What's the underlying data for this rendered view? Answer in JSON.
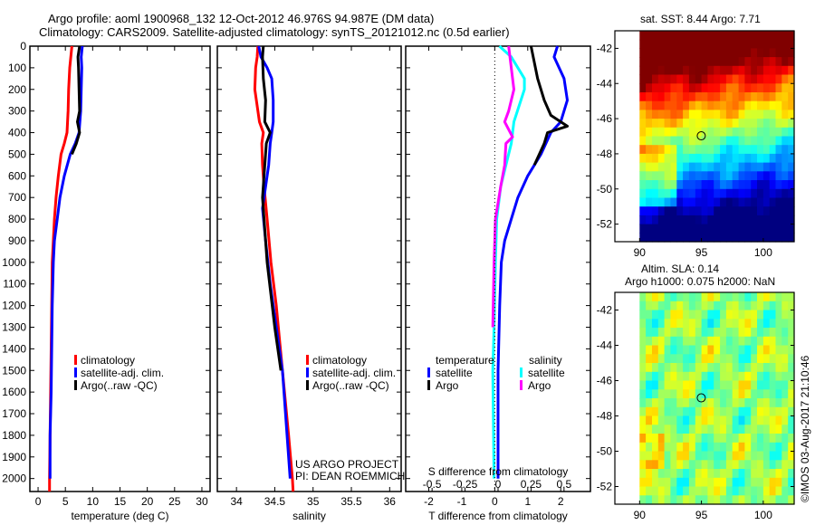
{
  "header": {
    "title_line1": "Argo profile: aoml 1900968_132 12-Oct-2012 46.976S 94.987E (DM data)",
    "title_line2": "Climatology: CARS2009. Satellite-adjusted climatology: synTS_20121012.nc (0.5d earlier)"
  },
  "colors": {
    "climatology": "#ff0000",
    "satellite": "#0000ff",
    "argo": "#000000",
    "sal_satellite": "#00ffff",
    "sal_argo": "#ff00ff"
  },
  "annotations": {
    "project_line1": "US ARGO PROJECT",
    "project_line2": "PI: DEAN ROEMMICH",
    "credit": "©IMOS 03-Aug-2017 21:10:46"
  },
  "chart_data": [
    {
      "type": "line",
      "id": "temperature",
      "xlabel": "temperature (deg C)",
      "ylabel": "",
      "xlim": [
        -1.5,
        31.5
      ],
      "ylim": [
        2060,
        0
      ],
      "xticks": [
        0,
        5,
        10,
        15,
        20,
        25,
        30
      ],
      "yticks": [
        0,
        100,
        200,
        300,
        400,
        500,
        600,
        700,
        800,
        900,
        1000,
        1100,
        1200,
        1300,
        1400,
        1500,
        1600,
        1700,
        1800,
        1900,
        2000
      ],
      "legend": [
        "climatology",
        "satellite-adj. clim.",
        "Argo(..raw -QC)"
      ],
      "legend_position": "lower-center",
      "series": [
        {
          "name": "climatology",
          "color": "#ff0000",
          "points": [
            [
              6.2,
              0
            ],
            [
              6.0,
              50
            ],
            [
              5.8,
              100
            ],
            [
              5.6,
              200
            ],
            [
              5.5,
              300
            ],
            [
              5.3,
              400
            ],
            [
              4.8,
              450
            ],
            [
              4.2,
              500
            ],
            [
              3.7,
              600
            ],
            [
              3.3,
              700
            ],
            [
              3.0,
              800
            ],
            [
              2.8,
              900
            ],
            [
              2.6,
              1000
            ],
            [
              2.5,
              1200
            ],
            [
              2.4,
              1400
            ],
            [
              2.3,
              1600
            ],
            [
              2.2,
              1800
            ],
            [
              2.1,
              2000
            ],
            [
              2.1,
              2060
            ]
          ]
        },
        {
          "name": "satellite-adj. clim.",
          "color": "#0000ff",
          "points": [
            [
              8.1,
              0
            ],
            [
              7.9,
              50
            ],
            [
              8.0,
              100
            ],
            [
              7.9,
              200
            ],
            [
              7.8,
              300
            ],
            [
              7.5,
              400
            ],
            [
              6.8,
              450
            ],
            [
              5.9,
              500
            ],
            [
              4.8,
              600
            ],
            [
              4.0,
              700
            ],
            [
              3.5,
              800
            ],
            [
              3.0,
              900
            ],
            [
              2.8,
              1000
            ],
            [
              2.6,
              1200
            ],
            [
              2.5,
              1400
            ],
            [
              2.4,
              1600
            ],
            [
              2.2,
              1800
            ],
            [
              2.2,
              2000
            ]
          ]
        },
        {
          "name": "Argo(..raw -QC)",
          "color": "#000000",
          "points": [
            [
              7.6,
              0
            ],
            [
              7.3,
              50
            ],
            [
              7.4,
              100
            ],
            [
              7.5,
              200
            ],
            [
              7.6,
              300
            ],
            [
              7.2,
              350
            ],
            [
              7.6,
              400
            ],
            [
              7.0,
              450
            ],
            [
              6.2,
              500
            ]
          ]
        }
      ]
    },
    {
      "type": "line",
      "id": "salinity",
      "xlabel": "salinity",
      "xlim": [
        33.75,
        36.15
      ],
      "ylim": [
        2060,
        0
      ],
      "xticks": [
        34,
        34.5,
        35,
        35.5,
        36
      ],
      "legend": [
        "climatology",
        "satellite-adj. clim.",
        "Argo(..raw -QC)"
      ],
      "legend_position": "lower-right",
      "series": [
        {
          "name": "climatology",
          "color": "#ff0000",
          "points": [
            [
              34.28,
              0
            ],
            [
              34.27,
              50
            ],
            [
              34.25,
              100
            ],
            [
              34.24,
              200
            ],
            [
              34.26,
              250
            ],
            [
              34.3,
              350
            ],
            [
              34.35,
              400
            ],
            [
              34.33,
              450
            ],
            [
              34.34,
              550
            ],
            [
              34.36,
              650
            ],
            [
              34.4,
              800
            ],
            [
              34.45,
              1000
            ],
            [
              34.52,
              1200
            ],
            [
              34.6,
              1500
            ],
            [
              34.68,
              1800
            ],
            [
              34.73,
              2000
            ],
            [
              34.74,
              2060
            ]
          ]
        },
        {
          "name": "satellite-adj. clim.",
          "color": "#0000ff",
          "points": [
            [
              34.29,
              0
            ],
            [
              34.32,
              50
            ],
            [
              34.4,
              100
            ],
            [
              34.46,
              150
            ],
            [
              34.48,
              250
            ],
            [
              34.48,
              350
            ],
            [
              34.46,
              400
            ],
            [
              34.44,
              450
            ],
            [
              34.42,
              550
            ],
            [
              34.38,
              650
            ],
            [
              34.34,
              750
            ],
            [
              34.38,
              900
            ],
            [
              34.44,
              1100
            ],
            [
              34.52,
              1300
            ],
            [
              34.6,
              1500
            ],
            [
              34.66,
              1800
            ],
            [
              34.7,
              2000
            ]
          ]
        },
        {
          "name": "Argo(..raw -QC)",
          "color": "#000000",
          "points": [
            [
              34.35,
              0
            ],
            [
              34.34,
              50
            ],
            [
              34.35,
              150
            ],
            [
              34.38,
              250
            ],
            [
              34.37,
              350
            ],
            [
              34.44,
              400
            ],
            [
              34.39,
              450
            ],
            [
              34.37,
              550
            ],
            [
              34.34,
              700
            ],
            [
              34.36,
              800
            ],
            [
              34.4,
              1000
            ],
            [
              34.5,
              1300
            ],
            [
              34.58,
              1500
            ]
          ]
        }
      ]
    },
    {
      "type": "line",
      "id": "differences",
      "xlabel": "T difference from climatology",
      "xlabel_top": "S difference from climatology",
      "xlim": [
        -2.7,
        2.9
      ],
      "xlim_salinity": [
        -0.7,
        0.7
      ],
      "ylim": [
        2060,
        0
      ],
      "xticks": [
        -2,
        -1,
        0,
        1,
        2
      ],
      "xticks_salinity": [
        -0.5,
        -0.25,
        0,
        0.25,
        0.5
      ],
      "xticklabels_salinity": [
        "-0.5",
        "-0.25",
        "0",
        "0.25",
        "0.5"
      ],
      "legend_headers": [
        "temperature",
        "salinity"
      ],
      "legend": [
        "satellite",
        "Argo",
        "satellite",
        "Argo"
      ],
      "legend_position": "lower-center",
      "series": [
        {
          "name": "temperature satellite",
          "color": "#0000ff",
          "axis": "T",
          "points": [
            [
              1.9,
              0
            ],
            [
              1.8,
              50
            ],
            [
              2.1,
              150
            ],
            [
              2.2,
              250
            ],
            [
              2.0,
              350
            ],
            [
              1.7,
              400
            ],
            [
              1.4,
              500
            ],
            [
              1.0,
              600
            ],
            [
              0.7,
              700
            ],
            [
              0.5,
              800
            ],
            [
              0.3,
              900
            ],
            [
              0.2,
              1000
            ],
            [
              0.15,
              1200
            ],
            [
              0.1,
              1500
            ],
            [
              0.1,
              2000
            ]
          ]
        },
        {
          "name": "temperature Argo",
          "color": "#000000",
          "axis": "T",
          "points": [
            [
              1.1,
              0
            ],
            [
              1.3,
              150
            ],
            [
              1.5,
              250
            ],
            [
              1.7,
              320
            ],
            [
              2.2,
              370
            ],
            [
              1.6,
              400
            ],
            [
              1.5,
              450
            ],
            [
              1.2,
              550
            ]
          ]
        },
        {
          "name": "salinity satellite",
          "color": "#00ffff",
          "axis": "S",
          "points": [
            [
              0.01,
              0
            ],
            [
              0.1,
              50
            ],
            [
              0.2,
              150
            ],
            [
              0.2,
              200
            ],
            [
              0.12,
              350
            ],
            [
              0.1,
              450
            ],
            [
              0.06,
              550
            ],
            [
              0.02,
              650
            ],
            [
              -0.01,
              800
            ],
            [
              -0.02,
              1000
            ],
            [
              -0.03,
              1300
            ],
            [
              -0.04,
              1500
            ],
            [
              -0.03,
              2000
            ]
          ]
        },
        {
          "name": "salinity Argo",
          "color": "#ff00ff",
          "axis": "S",
          "points": [
            [
              0.08,
              0
            ],
            [
              0.1,
              100
            ],
            [
              0.12,
              200
            ],
            [
              0.08,
              300
            ],
            [
              0.05,
              350
            ],
            [
              0.11,
              420
            ],
            [
              0.06,
              450
            ],
            [
              0.05,
              550
            ],
            [
              0.02,
              650
            ],
            [
              -0.02,
              800
            ],
            [
              -0.03,
              1000
            ],
            [
              -0.04,
              1300
            ]
          ]
        }
      ]
    },
    {
      "type": "heatmap",
      "id": "sst-map",
      "title": "sat. SST: 8.44 Argo: 7.71",
      "xlim": [
        88,
        102.5
      ],
      "ylim": [
        -53,
        -41
      ],
      "xticks": [
        90,
        95,
        100
      ],
      "yticks": [
        -42,
        -44,
        -46,
        -48,
        -50,
        -52
      ],
      "marker": {
        "lon": 94.987,
        "lat": -46.976
      },
      "colormap": "jet"
    },
    {
      "type": "heatmap",
      "id": "sla-map",
      "title_line1": "Altim. SLA: 0.14",
      "title_line2": "Argo h1000: 0.075 h2000: NaN",
      "xlim": [
        88,
        102.5
      ],
      "ylim": [
        -53,
        -41
      ],
      "xticks": [
        90,
        95,
        100
      ],
      "yticks": [
        -42,
        -44,
        -46,
        -48,
        -50,
        -52
      ],
      "marker": {
        "lon": 94.987,
        "lat": -46.976
      },
      "colormap": "jet"
    }
  ]
}
